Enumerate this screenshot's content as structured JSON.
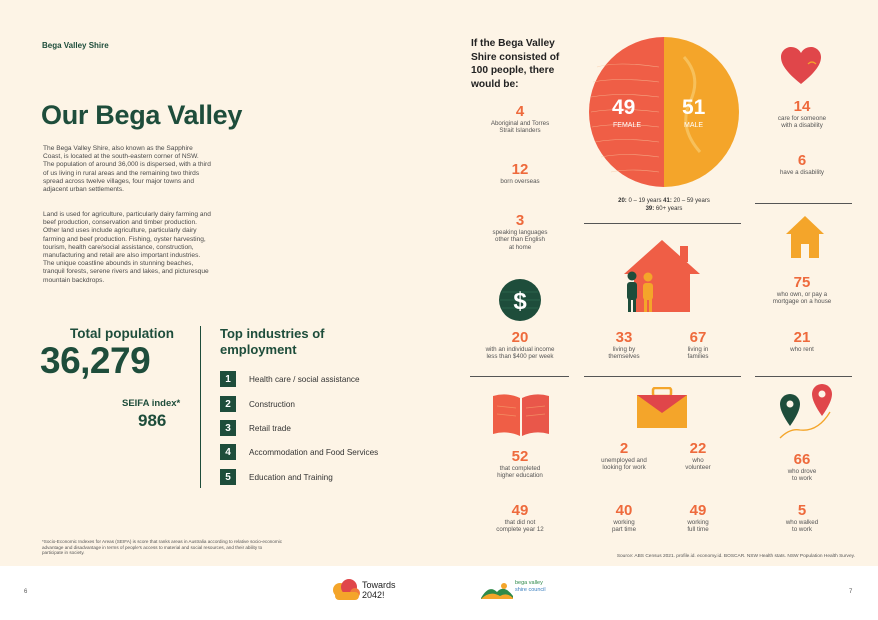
{
  "header": {
    "shire": "Bega Valley Shire",
    "title": "Our Bega Valley"
  },
  "intro": {
    "p1": "The Bega Valley Shire, also known as the Sapphire Coast, is located at the south-eastern corner of NSW. The population of around 36,000 is dispersed, with a third of us living in rural areas and the remaining two thirds spread across twelve villages, four major towns and adjacent urban settlements.",
    "p2": "Land is used for agriculture, particularly dairy farming and beef production, conservation and timber production. Other land uses include agriculture, particularly dairy farming and beef production. Fishing, oyster harvesting, tourism, health care/social assistance, construction, manufacturing and retail are also important industries. The unique coastline abounds in stunning beaches, tranquil forests, serene rivers and lakes, and picturesque mountain backdrops."
  },
  "population": {
    "label": "Total population",
    "value": "36,279",
    "seifa_label": "SEIFA index*",
    "seifa_value": "986"
  },
  "industries": {
    "title_line1": "Top industries of",
    "title_line2": "employment",
    "items": [
      {
        "n": "1",
        "label": "Health care / social assistance"
      },
      {
        "n": "2",
        "label": "Construction"
      },
      {
        "n": "3",
        "label": "Retail trade"
      },
      {
        "n": "4",
        "label": "Accommodation and Food Services"
      },
      {
        "n": "5",
        "label": "Education and Training"
      }
    ]
  },
  "footnote": "*Socio-Economic Indexes for Areas (SEIFA) is score that ranks areas in Australia according to relative socio-economic advantage and disadvantage in terms of people's access to material and social resources, and their ability to participate in society.",
  "hundred": {
    "line1": "If the Bega Valley",
    "line2": "Shire consisted of",
    "line3": "100 people, there",
    "line4": "would be:"
  },
  "gender": {
    "female_value": "49",
    "female_label": "FEMALE",
    "male_value": "51",
    "male_label": "MALE",
    "age_line1a": "20:",
    "age_line1b": " 0 – 19 years ",
    "age_line1c": "41:",
    "age_line1d": " 20 – 59 years",
    "age_line2a": "39:",
    "age_line2b": " 60+ years",
    "female_fraction": 0.49
  },
  "stats": {
    "aboriginal": {
      "value": "4",
      "l1": "Aboriginal and Torres",
      "l2": "Strait Islanders"
    },
    "overseas": {
      "value": "12",
      "l1": "born overseas"
    },
    "languages": {
      "value": "3",
      "l1": "speaking languages",
      "l2": "other than English",
      "l3": "at home"
    },
    "care": {
      "value": "14",
      "l1": "care for someone",
      "l2": "with a disability"
    },
    "disability": {
      "value": "6",
      "l1": "have a disability"
    },
    "mortgage": {
      "value": "75",
      "l1": "who own, or pay a",
      "l2": "mortgage on a house"
    },
    "income": {
      "value": "20",
      "l1": "with an individual income",
      "l2": "less than $400 per week"
    },
    "alone": {
      "value": "33",
      "l1": "living by",
      "l2": "themselves"
    },
    "families": {
      "value": "67",
      "l1": "living in",
      "l2": "families"
    },
    "rent": {
      "value": "21",
      "l1": "who rent"
    },
    "higher_ed": {
      "value": "52",
      "l1": "that completed",
      "l2": "higher education"
    },
    "unemployed": {
      "value": "2",
      "l1": "unemployed and",
      "l2": "looking for work"
    },
    "volunteer": {
      "value": "22",
      "l1": "who",
      "l2": "volunteer"
    },
    "drove": {
      "value": "66",
      "l1": "who drove",
      "l2": "to work"
    },
    "year12": {
      "value": "49",
      "l1": "that did not",
      "l2": "complete year 12"
    },
    "part_time": {
      "value": "40",
      "l1": "working",
      "l2": "part time"
    },
    "full_time": {
      "value": "49",
      "l1": "working",
      "l2": "full time"
    },
    "walked": {
      "value": "5",
      "l1": "who walked",
      "l2": "to work"
    }
  },
  "source": "Source: ABS Census 2021. profile.id. economy.id. BOSCAR. NSW Health stats. NSW Population Health Survey.",
  "footer": {
    "page_left": "6",
    "page_right": "7",
    "towards1": "Towards",
    "towards2": "2042!",
    "council1": "bega valley",
    "council2": "shire council"
  },
  "icons": [
    "heart-icon",
    "dollar-icon",
    "house-family-icon",
    "house-icon",
    "book-icon",
    "briefcase-icon",
    "map-pin-icon",
    "cloud-logo-icon",
    "hills-logo-icon"
  ],
  "colors": {
    "green": "#1e4d3b",
    "orange": "#ee6a3c",
    "red": "#e4483c",
    "amber": "#f4a52a",
    "background": "#fdf4e6"
  }
}
